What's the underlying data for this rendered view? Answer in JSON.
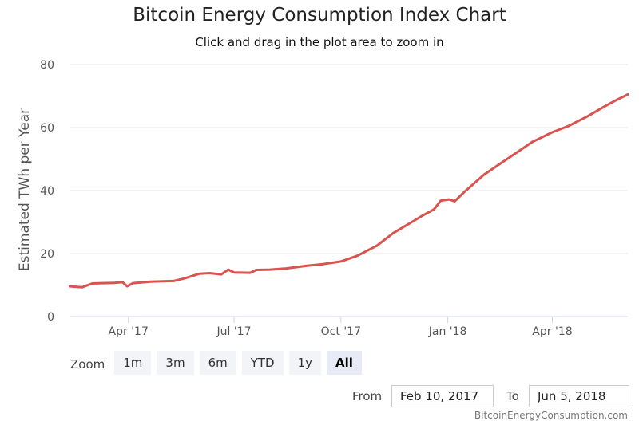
{
  "chart_data": {
    "type": "line",
    "title": "Bitcoin Energy Consumption Index Chart",
    "subtitle": "Click and drag in the plot area to zoom in",
    "ylabel": "Estimated TWh per Year",
    "xlabel": "",
    "ylim": [
      0,
      80
    ],
    "y_ticks": [
      0,
      20,
      40,
      60,
      80
    ],
    "x_range": [
      "2017-02-10",
      "2018-06-05"
    ],
    "x_ticks": [
      {
        "date": "2017-04-01",
        "label": "Apr '17"
      },
      {
        "date": "2017-07-01",
        "label": "Jul '17"
      },
      {
        "date": "2017-10-01",
        "label": "Oct '17"
      },
      {
        "date": "2018-01-01",
        "label": "Jan '18"
      },
      {
        "date": "2018-04-01",
        "label": "Apr '18"
      }
    ],
    "grid": true,
    "legend": "none",
    "line_color": "#d9534f",
    "series": [
      {
        "points": [
          [
            "2017-02-10",
            9.6
          ],
          [
            "2017-02-20",
            9.3
          ],
          [
            "2017-03-01",
            10.5
          ],
          [
            "2017-03-10",
            10.6
          ],
          [
            "2017-03-20",
            10.7
          ],
          [
            "2017-03-27",
            10.9
          ],
          [
            "2017-03-31",
            9.6
          ],
          [
            "2017-04-05",
            10.6
          ],
          [
            "2017-04-20",
            11.1
          ],
          [
            "2017-05-01",
            11.2
          ],
          [
            "2017-05-10",
            11.3
          ],
          [
            "2017-05-20",
            12.2
          ],
          [
            "2017-06-01",
            13.6
          ],
          [
            "2017-06-10",
            13.8
          ],
          [
            "2017-06-20",
            13.4
          ],
          [
            "2017-06-26",
            14.9
          ],
          [
            "2017-07-01",
            14.0
          ],
          [
            "2017-07-15",
            13.9
          ],
          [
            "2017-07-20",
            14.8
          ],
          [
            "2017-08-01",
            14.9
          ],
          [
            "2017-08-15",
            15.3
          ],
          [
            "2017-09-01",
            16.1
          ],
          [
            "2017-09-15",
            16.6
          ],
          [
            "2017-10-01",
            17.5
          ],
          [
            "2017-10-15",
            19.3
          ],
          [
            "2017-11-01",
            22.5
          ],
          [
            "2017-11-15",
            26.5
          ],
          [
            "2017-12-01",
            30.0
          ],
          [
            "2017-12-10",
            32.0
          ],
          [
            "2017-12-20",
            34.0
          ],
          [
            "2017-12-26",
            36.8
          ],
          [
            "2018-01-02",
            37.2
          ],
          [
            "2018-01-07",
            36.6
          ],
          [
            "2018-01-15",
            39.5
          ],
          [
            "2018-02-01",
            45.0
          ],
          [
            "2018-02-15",
            48.5
          ],
          [
            "2018-03-01",
            52.0
          ],
          [
            "2018-03-15",
            55.5
          ],
          [
            "2018-04-01",
            58.5
          ],
          [
            "2018-04-15",
            60.5
          ],
          [
            "2018-05-01",
            63.5
          ],
          [
            "2018-05-15",
            66.5
          ],
          [
            "2018-05-25",
            68.5
          ],
          [
            "2018-06-05",
            70.5
          ]
        ]
      }
    ]
  },
  "rangeSelector": {
    "zoom_label": "Zoom",
    "buttons": [
      {
        "label": "1m",
        "active": false
      },
      {
        "label": "3m",
        "active": false
      },
      {
        "label": "6m",
        "active": false
      },
      {
        "label": "YTD",
        "active": false
      },
      {
        "label": "1y",
        "active": false
      },
      {
        "label": "All",
        "active": true
      }
    ],
    "from_label": "From",
    "from_value": "Feb 10, 2017",
    "to_label": "To",
    "to_value": "Jun 5, 2018"
  },
  "credit": "BitcoinEnergyConsumption.com"
}
